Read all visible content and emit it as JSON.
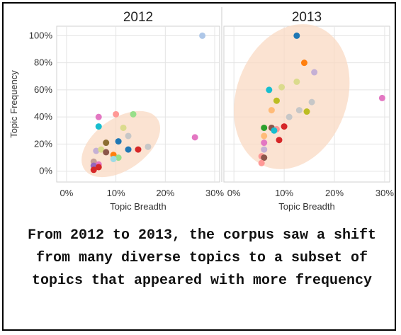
{
  "chart_data": {
    "type": "scatter",
    "facets": [
      {
        "title": "2012",
        "points": [
          {
            "x": 27.5,
            "y": 100,
            "color": "#aec7e8"
          },
          {
            "x": 6.5,
            "y": 40,
            "color": "#e377c2"
          },
          {
            "x": 10,
            "y": 42,
            "color": "#ff9896"
          },
          {
            "x": 13.5,
            "y": 42,
            "color": "#98df8a"
          },
          {
            "x": 6.5,
            "y": 33,
            "color": "#17becf"
          },
          {
            "x": 11.5,
            "y": 32,
            "color": "#dbdb8d"
          },
          {
            "x": 12.5,
            "y": 26,
            "color": "#c7c7c7"
          },
          {
            "x": 26,
            "y": 25,
            "color": "#e377c2"
          },
          {
            "x": 8,
            "y": 21,
            "color": "#8c6d31"
          },
          {
            "x": 10.5,
            "y": 22,
            "color": "#1f77b4"
          },
          {
            "x": 16.5,
            "y": 18,
            "color": "#c7c7c7"
          },
          {
            "x": 6,
            "y": 15,
            "color": "#c5b0d5"
          },
          {
            "x": 7,
            "y": 16,
            "color": "#dbdb8d"
          },
          {
            "x": 8,
            "y": 14,
            "color": "#8c564b"
          },
          {
            "x": 12.5,
            "y": 16,
            "color": "#1f77b4"
          },
          {
            "x": 14.5,
            "y": 16,
            "color": "#d62728"
          },
          {
            "x": 9.5,
            "y": 12,
            "color": "#ff7f0e"
          },
          {
            "x": 10.5,
            "y": 10,
            "color": "#98df8a"
          },
          {
            "x": 9.5,
            "y": 9,
            "color": "#9edae5"
          },
          {
            "x": 5.5,
            "y": 7,
            "color": "#c49c94"
          },
          {
            "x": 6.5,
            "y": 5,
            "color": "#e377c2"
          },
          {
            "x": 5.5,
            "y": 4,
            "color": "#9467bd"
          },
          {
            "x": 6.5,
            "y": 3,
            "color": "#d62728"
          },
          {
            "x": 5.5,
            "y": 1,
            "color": "#d62728"
          }
        ],
        "ellipse": {
          "cx": 11,
          "cy": 20,
          "rx": 9,
          "ry": 19,
          "angle": -35
        }
      },
      {
        "title": "2013",
        "points": [
          {
            "x": 12.5,
            "y": 100,
            "color": "#1f77b4"
          },
          {
            "x": 14,
            "y": 80,
            "color": "#ff7f0e"
          },
          {
            "x": 16,
            "y": 73,
            "color": "#c5b0d5"
          },
          {
            "x": 12.5,
            "y": 66,
            "color": "#dbdb8d"
          },
          {
            "x": 7,
            "y": 60,
            "color": "#17becf"
          },
          {
            "x": 9.5,
            "y": 62,
            "color": "#dbdb8d"
          },
          {
            "x": 29.5,
            "y": 54,
            "color": "#e377c2"
          },
          {
            "x": 8.5,
            "y": 52,
            "color": "#bcbd22"
          },
          {
            "x": 15.5,
            "y": 51,
            "color": "#c7c7c7"
          },
          {
            "x": 7.5,
            "y": 45,
            "color": "#ffbb78"
          },
          {
            "x": 13,
            "y": 45,
            "color": "#c7c7c7"
          },
          {
            "x": 14.5,
            "y": 44,
            "color": "#bcbd22"
          },
          {
            "x": 11,
            "y": 40,
            "color": "#c7c7c7"
          },
          {
            "x": 6,
            "y": 32,
            "color": "#2ca02c"
          },
          {
            "x": 7.5,
            "y": 32,
            "color": "#8c564b"
          },
          {
            "x": 8.5,
            "y": 31,
            "color": "#ff9896"
          },
          {
            "x": 10,
            "y": 33,
            "color": "#d62728"
          },
          {
            "x": 8,
            "y": 30,
            "color": "#17becf"
          },
          {
            "x": 6,
            "y": 26,
            "color": "#ffbb78"
          },
          {
            "x": 9,
            "y": 23,
            "color": "#d62728"
          },
          {
            "x": 6,
            "y": 21,
            "color": "#e377c2"
          },
          {
            "x": 6,
            "y": 16,
            "color": "#c5b0d5"
          },
          {
            "x": 5.5,
            "y": 11,
            "color": "#ff9896"
          },
          {
            "x": 6,
            "y": 10,
            "color": "#8c564b"
          },
          {
            "x": 5.5,
            "y": 6,
            "color": "#ff9896"
          }
        ],
        "ellipse": {
          "cx": 11.5,
          "cy": 55,
          "rx": 11,
          "ry": 55,
          "angle": 20
        }
      }
    ],
    "xlabel": "Topic Breadth",
    "ylabel": "Topic Frequency",
    "xticks": [
      "0%",
      "10%",
      "20%",
      "30%"
    ],
    "yticks": [
      "0%",
      "20%",
      "40%",
      "60%",
      "80%",
      "100%"
    ],
    "xlim": [
      -2,
      31
    ],
    "ylim": [
      -8,
      107
    ],
    "grid": true,
    "ellipse_color": "#f9d9c3"
  },
  "caption": "From 2012 to 2013, the corpus saw a shift from many diverse topics to a subset of topics that appeared with more frequency"
}
